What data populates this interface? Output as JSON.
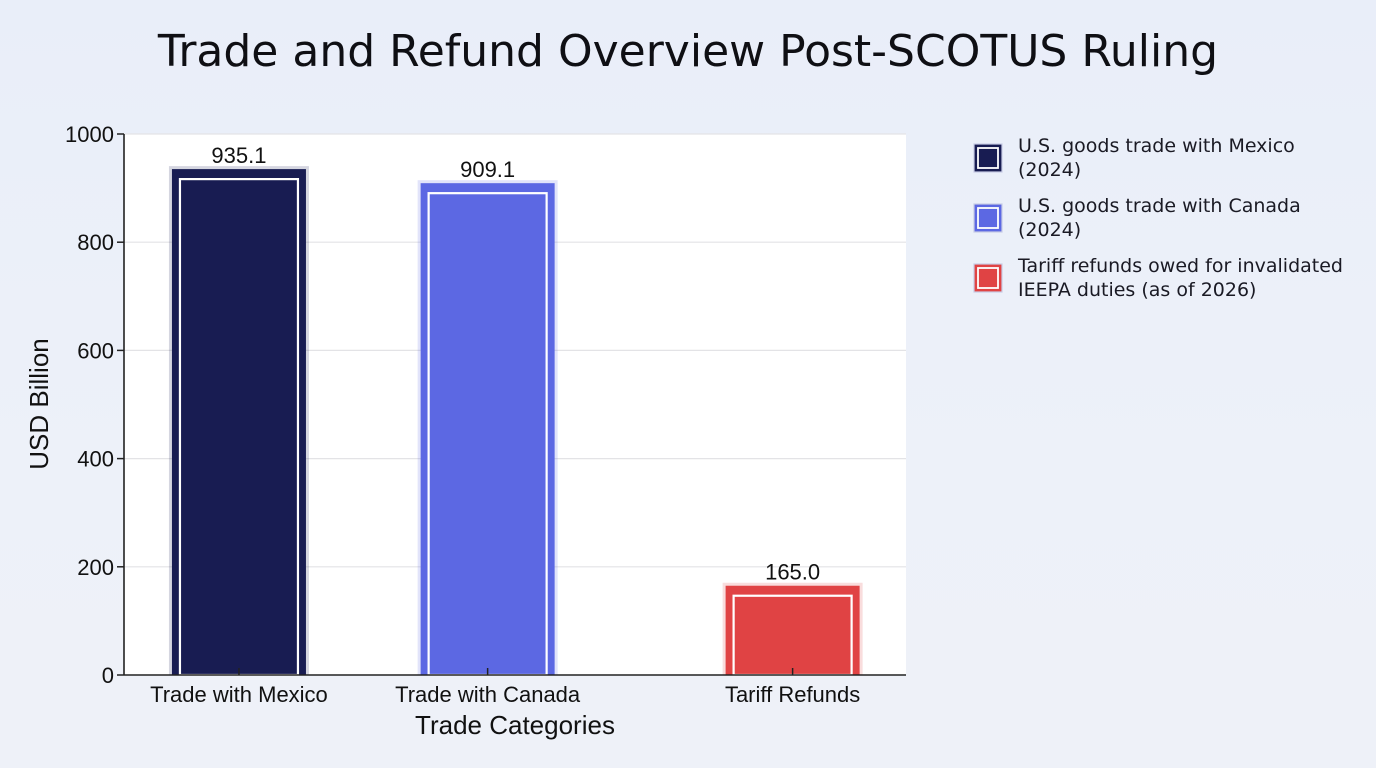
{
  "chart_data": {
    "type": "bar",
    "title": "Trade and Refund Overview Post-SCOTUS Ruling",
    "xlabel": "Trade Categories",
    "ylabel": "USD Billion",
    "ylim": [
      0,
      1000
    ],
    "yticks": [
      0,
      200,
      400,
      600,
      800,
      1000
    ],
    "categories": [
      "Trade with Mexico",
      "Trade with Canada",
      "Tariff Refunds"
    ],
    "values": [
      935.1,
      909.1,
      165.0
    ],
    "data_labels": [
      "935.1",
      "909.1",
      "165.0"
    ],
    "colors": [
      "#181c52",
      "#5c68e3",
      "#e04344"
    ],
    "grid": "horizontal",
    "legend_position": "right",
    "legend": [
      {
        "lines": [
          "U.S. goods trade with Mexico",
          "(2024)"
        ],
        "color": "#181c52"
      },
      {
        "lines": [
          "U.S. goods trade with Canada",
          "(2024)"
        ],
        "color": "#5c68e3"
      },
      {
        "lines": [
          "Tariff refunds owed for invalidated",
          "IEEPA duties (as of 2026)"
        ],
        "color": "#e04344"
      }
    ]
  }
}
